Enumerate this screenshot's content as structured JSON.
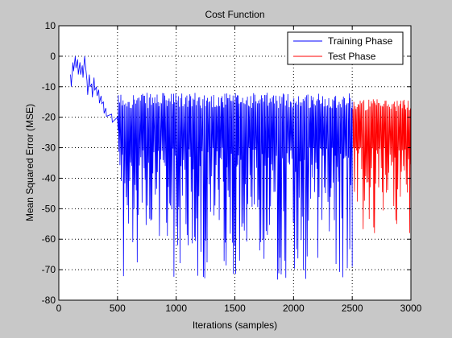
{
  "chart_data": {
    "type": "line",
    "title": "Cost Function",
    "xlabel": "Iterations (samples)",
    "ylabel": "Mean Squared Error (MSE)",
    "xlim": [
      0,
      3000
    ],
    "ylim": [
      -80,
      10
    ],
    "xticks": [
      0,
      500,
      1000,
      1500,
      2000,
      2500,
      3000
    ],
    "yticks": [
      10,
      0,
      -10,
      -20,
      -30,
      -40,
      -50,
      -60,
      -70,
      -80
    ],
    "grid": true,
    "legend_position": "top-right",
    "series": [
      {
        "name": "Training Phase",
        "color": "#0000ff",
        "x_range": [
          100,
          2500
        ],
        "early_profile_x": [
          100,
          120,
          140,
          160,
          180,
          200,
          220,
          240,
          260,
          280,
          300,
          320,
          340,
          360,
          380,
          400,
          450,
          500
        ],
        "early_profile_y": [
          -6,
          -2,
          0,
          -1,
          -2,
          -3,
          0,
          -8,
          -6,
          -9,
          -7,
          -10,
          -11,
          -13,
          -15,
          -17,
          -19,
          -20
        ],
        "steady_upper_band": [
          -12,
          -17
        ],
        "steady_lower_band": [
          -30,
          -74
        ],
        "notable_dips": [
          {
            "x": 500,
            "y": -74
          },
          {
            "x": 1010,
            "y": -62
          },
          {
            "x": 1100,
            "y": -62
          },
          {
            "x": 2100,
            "y": -73
          }
        ]
      },
      {
        "name": "Test Phase",
        "color": "#ff0000",
        "x_range": [
          2500,
          3000
        ],
        "steady_upper_band": [
          -14,
          -18
        ],
        "steady_lower_band": [
          -30,
          -58
        ],
        "notable_dips": [
          {
            "x": 2690,
            "y": -58
          },
          {
            "x": 2990,
            "y": -58
          }
        ]
      }
    ]
  }
}
